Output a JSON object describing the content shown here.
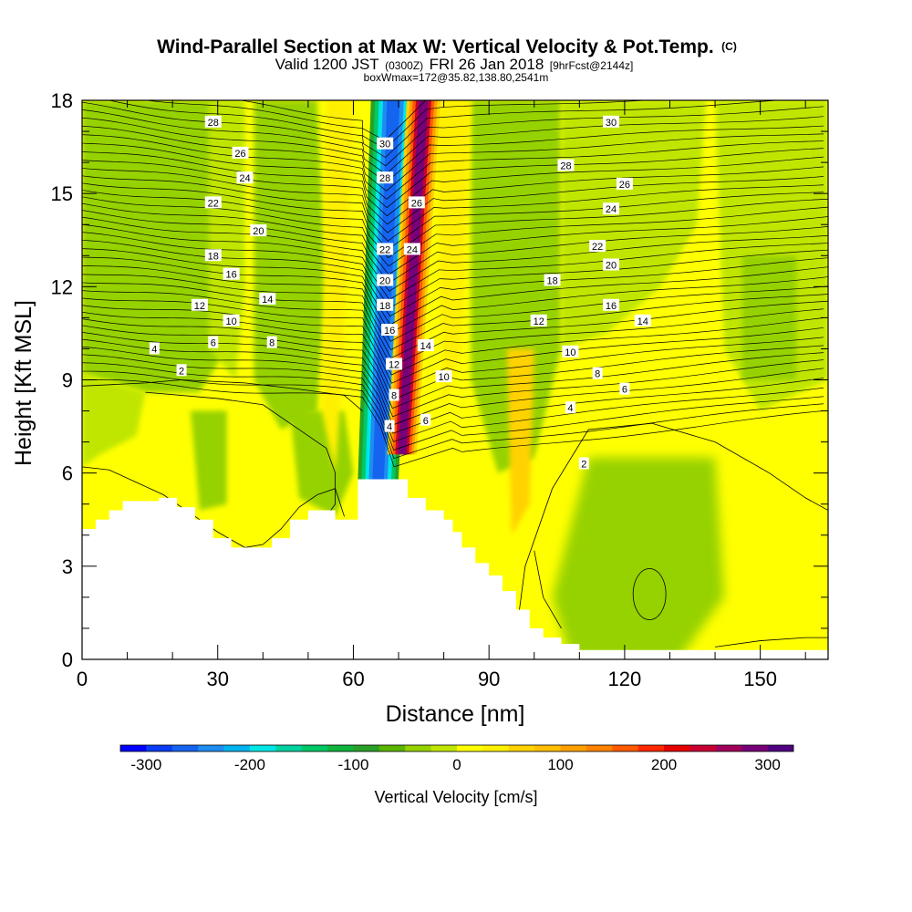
{
  "title": {
    "main": "Wind-Parallel Section at Max W: Vertical Velocity & Pot.Temp.",
    "main_suffix": "(C)",
    "valid_a": "Valid 1200 JST",
    "valid_b": "(0300Z)",
    "valid_c": "FRI 26 Jan 2018",
    "valid_d": "[9hrFcst@2144z]",
    "box": "boxWmax=172@35.82,138.80,2541m"
  },
  "chart_data": {
    "type": "heatmap",
    "xlabel": "Distance [nm]",
    "ylabel": "Height [Kft MSL]",
    "xlim": [
      0,
      165
    ],
    "ylim": [
      0,
      18
    ],
    "xticks": [
      0,
      30,
      60,
      90,
      120,
      150
    ],
    "xtick_labels": [
      "0",
      "30",
      "60",
      "90",
      "120",
      "150"
    ],
    "yticks": [
      0,
      3,
      6,
      9,
      12,
      15,
      18
    ],
    "ytick_labels": [
      "0",
      "3",
      "6",
      "9",
      "12",
      "15",
      "18"
    ],
    "colorbar": {
      "title": "Vertical Velocity [cm/s]",
      "min": -325,
      "max": 325,
      "step": 25,
      "tick_values": [
        -300,
        -200,
        -100,
        0,
        100,
        200,
        300
      ],
      "tick_labels": [
        "-300",
        "-200",
        "-100",
        "0",
        "100",
        "200",
        "300"
      ],
      "colors": [
        "#0000ff",
        "#0a3cf5",
        "#1464f0",
        "#1e8cf0",
        "#00b4f0",
        "#00e6e6",
        "#00d2a0",
        "#00c864",
        "#10b43c",
        "#28a028",
        "#5ab400",
        "#96d200",
        "#c0e600",
        "#ffff00",
        "#fff000",
        "#ffd200",
        "#ffbe00",
        "#ffa000",
        "#ff8200",
        "#ff5a00",
        "#ff2800",
        "#e60000",
        "#c80032",
        "#a0005a",
        "#780078",
        "#500080"
      ]
    },
    "w_features": [
      {
        "kind": "downdraft-band",
        "x0": 66,
        "x1": 74.5,
        "y0": 18,
        "x1_bot": 70,
        "x0_bot": 60,
        "y_bot": 5.8,
        "peak_cm_s": -260
      },
      {
        "kind": "updraft-band",
        "x0": 73,
        "x1": 78,
        "y0": 18,
        "x0_bot": 67,
        "x1_bot": 73,
        "y_bot": 6.5,
        "peak_cm_s": 300
      }
    ],
    "terrain_top_kft": [
      [
        0,
        4.2
      ],
      [
        3,
        4.5
      ],
      [
        6,
        4.8
      ],
      [
        9,
        5.1
      ],
      [
        13,
        5.1
      ],
      [
        17,
        5.2
      ],
      [
        21,
        4.9
      ],
      [
        25,
        4.5
      ],
      [
        29,
        3.9
      ],
      [
        33,
        3.6
      ],
      [
        38,
        3.6
      ],
      [
        42,
        3.9
      ],
      [
        46,
        4.5
      ],
      [
        50,
        4.8
      ],
      [
        56,
        4.5
      ],
      [
        61,
        5.8
      ],
      [
        68,
        5.8
      ],
      [
        72,
        5.2
      ],
      [
        76,
        4.8
      ],
      [
        80,
        4.5
      ],
      [
        82,
        4.1
      ],
      [
        84,
        3.6
      ],
      [
        87,
        3.1
      ],
      [
        90,
        2.7
      ],
      [
        93,
        2.2
      ],
      [
        96,
        1.6
      ],
      [
        99,
        1.0
      ],
      [
        102,
        0.7
      ],
      [
        106,
        0.5
      ],
      [
        110,
        0.3
      ],
      [
        165,
        0.3
      ]
    ],
    "theta_contour_labels": [
      {
        "x": 29,
        "y": 17.3,
        "text": "28"
      },
      {
        "x": 35,
        "y": 16.3,
        "text": "26"
      },
      {
        "x": 36,
        "y": 15.5,
        "text": "24"
      },
      {
        "x": 29,
        "y": 14.7,
        "text": "22"
      },
      {
        "x": 39,
        "y": 13.8,
        "text": "20"
      },
      {
        "x": 29,
        "y": 13.0,
        "text": "18"
      },
      {
        "x": 33,
        "y": 12.4,
        "text": "16"
      },
      {
        "x": 41,
        "y": 11.6,
        "text": "14"
      },
      {
        "x": 26,
        "y": 11.4,
        "text": "12"
      },
      {
        "x": 33,
        "y": 10.9,
        "text": "10"
      },
      {
        "x": 42,
        "y": 10.2,
        "text": "8"
      },
      {
        "x": 29,
        "y": 10.2,
        "text": "6"
      },
      {
        "x": 16,
        "y": 10.0,
        "text": "4"
      },
      {
        "x": 22,
        "y": 9.3,
        "text": "2"
      },
      {
        "x": 67,
        "y": 16.6,
        "text": "30"
      },
      {
        "x": 67,
        "y": 15.5,
        "text": "28"
      },
      {
        "x": 74,
        "y": 14.7,
        "text": "26"
      },
      {
        "x": 67,
        "y": 13.2,
        "text": "22"
      },
      {
        "x": 73,
        "y": 13.2,
        "text": "24"
      },
      {
        "x": 67,
        "y": 12.2,
        "text": "20"
      },
      {
        "x": 67,
        "y": 11.4,
        "text": "18"
      },
      {
        "x": 68,
        "y": 10.6,
        "text": "16"
      },
      {
        "x": 76,
        "y": 10.1,
        "text": "14"
      },
      {
        "x": 69,
        "y": 9.5,
        "text": "12"
      },
      {
        "x": 80,
        "y": 9.1,
        "text": "10"
      },
      {
        "x": 69,
        "y": 8.5,
        "text": "8"
      },
      {
        "x": 76,
        "y": 7.7,
        "text": "6"
      },
      {
        "x": 68,
        "y": 7.5,
        "text": "4"
      },
      {
        "x": 117,
        "y": 17.3,
        "text": "30"
      },
      {
        "x": 107,
        "y": 15.9,
        "text": "28"
      },
      {
        "x": 120,
        "y": 15.3,
        "text": "26"
      },
      {
        "x": 117,
        "y": 14.5,
        "text": "24"
      },
      {
        "x": 114,
        "y": 13.3,
        "text": "22"
      },
      {
        "x": 117,
        "y": 12.7,
        "text": "20"
      },
      {
        "x": 104,
        "y": 12.2,
        "text": "18"
      },
      {
        "x": 117,
        "y": 11.4,
        "text": "16"
      },
      {
        "x": 124,
        "y": 10.9,
        "text": "14"
      },
      {
        "x": 101,
        "y": 10.9,
        "text": "12"
      },
      {
        "x": 108,
        "y": 9.9,
        "text": "10"
      },
      {
        "x": 114,
        "y": 9.2,
        "text": "8"
      },
      {
        "x": 120,
        "y": 8.7,
        "text": "6"
      },
      {
        "x": 108,
        "y": 8.1,
        "text": "4"
      },
      {
        "x": 111,
        "y": 6.3,
        "text": "2"
      }
    ]
  },
  "colors": {
    "background": "#ffffff",
    "field_base": "#ffff00",
    "terrain": "#ffffff",
    "contour": "#000000"
  }
}
